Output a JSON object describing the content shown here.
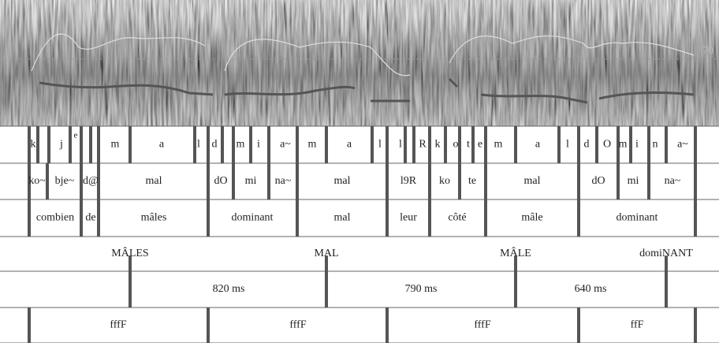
{
  "spectrogram": {
    "scale_label": "70"
  },
  "tiers": [
    {
      "labels": [
        "k",
        "j",
        "e",
        "m",
        "a",
        "l",
        "d",
        "m",
        "i",
        "a~",
        "m",
        "a",
        "l",
        "l",
        "R",
        "k",
        "o",
        "t",
        "e",
        "m",
        "a",
        "l",
        "d",
        "O",
        "m",
        "i",
        "n",
        "a~"
      ]
    },
    {
      "labels": [
        "ko~",
        "bje~",
        "d@",
        "mal",
        "dO",
        "mi",
        "na~",
        "mal",
        "l9R",
        "ko",
        "te",
        "mal",
        "dO",
        "mi",
        "na~"
      ]
    },
    {
      "labels": [
        "combien",
        "de",
        "mâles",
        "dominant",
        "mal",
        "leur",
        "côté",
        "mâle",
        "dominant"
      ]
    },
    {
      "labels": [
        "MÂLES",
        "MAL",
        "MÂLE",
        "domiNANT"
      ]
    },
    {
      "labels": [
        "820 ms",
        "790 ms",
        "640 ms"
      ]
    },
    {
      "labels": [
        "fffF",
        "fffF",
        "fffF",
        "ffF"
      ]
    }
  ]
}
